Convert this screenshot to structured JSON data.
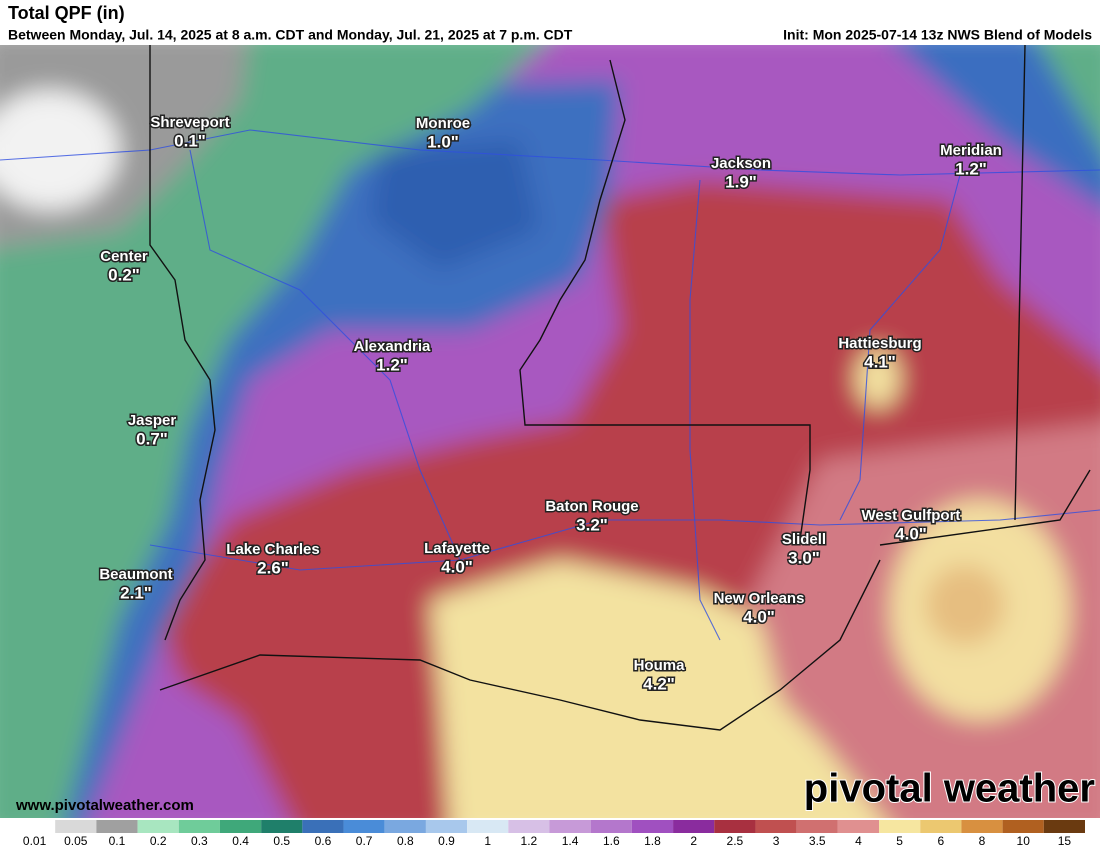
{
  "header": {
    "title": "Total QPF (in)",
    "subtitle": "Between Monday, Jul. 14, 2025 at 8 a.m. CDT and Monday, Jul. 21, 2025 at 7 p.m. CDT",
    "init": "Init: Mon 2025-07-14 13z NWS Blend of Models"
  },
  "map": {
    "cities": [
      {
        "name": "Shreveport",
        "value": "0.1\""
      },
      {
        "name": "Monroe",
        "value": "1.0\""
      },
      {
        "name": "Jackson",
        "value": "1.9\""
      },
      {
        "name": "Meridian",
        "value": "1.2\""
      },
      {
        "name": "Center",
        "value": "0.2\""
      },
      {
        "name": "Alexandria",
        "value": "1.2\""
      },
      {
        "name": "Hattiesburg",
        "value": "4.1\""
      },
      {
        "name": "Jasper",
        "value": "0.7\""
      },
      {
        "name": "Baton Rouge",
        "value": "3.2\""
      },
      {
        "name": "West Gulfport",
        "value": "4.0\""
      },
      {
        "name": "Slidell",
        "value": "3.0\""
      },
      {
        "name": "Lake Charles",
        "value": "2.6\""
      },
      {
        "name": "Lafayette",
        "value": "4.0\""
      },
      {
        "name": "Beaumont",
        "value": "2.1\""
      },
      {
        "name": "New Orleans",
        "value": "4.0\""
      },
      {
        "name": "Houma",
        "value": "4.2\""
      }
    ]
  },
  "footer": {
    "url": "www.pivotalweather.com",
    "brand": "pivotal weather"
  },
  "colorbar": {
    "labels": [
      "0.01",
      "0.05",
      "0.1",
      "0.2",
      "0.3",
      "0.4",
      "0.5",
      "0.6",
      "0.7",
      "0.8",
      "0.9",
      "1",
      "1.2",
      "1.4",
      "1.6",
      "1.8",
      "2",
      "2.5",
      "3",
      "3.5",
      "4",
      "5",
      "6",
      "8",
      "10",
      "15"
    ],
    "colors": [
      "#ffffff",
      "#d9d9d9",
      "#a0a0a0",
      "#a8e6c0",
      "#6fcc9a",
      "#3fa87a",
      "#1f7f6a",
      "#3a70b8",
      "#4a8cd8",
      "#7aa8e0",
      "#a8c8ec",
      "#d8e8f4",
      "#d7c0e6",
      "#c79ad8",
      "#b477cc",
      "#a050c0",
      "#8a2c9e",
      "#a83040",
      "#c05050",
      "#d07070",
      "#e09090",
      "#f6e6a0",
      "#ecc870",
      "#d89040",
      "#b06020",
      "#6a3a10"
    ]
  }
}
